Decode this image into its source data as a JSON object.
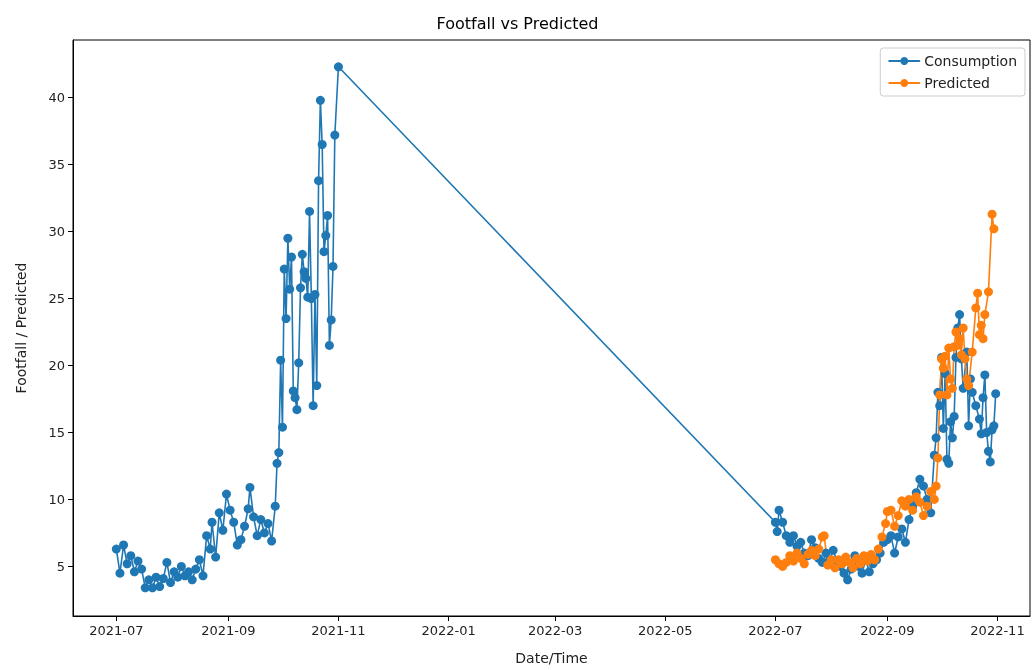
{
  "chart_data": {
    "type": "line",
    "title": "Footfall vs Predicted",
    "xlabel": "Date/Time",
    "ylabel": "Footfall / Predicted",
    "xlim": [
      "2021-06-07",
      "2022-11-19"
    ],
    "xticks": [
      {
        "value": "2021-07-01",
        "label": "2021-07"
      },
      {
        "value": "2021-09-01",
        "label": "2021-09"
      },
      {
        "value": "2021-11-01",
        "label": "2021-11"
      },
      {
        "value": "2022-01-01",
        "label": "2022-01"
      },
      {
        "value": "2022-03-01",
        "label": "2022-03"
      },
      {
        "value": "2022-05-01",
        "label": "2022-05"
      },
      {
        "value": "2022-07-01",
        "label": "2022-07"
      },
      {
        "value": "2022-09-01",
        "label": "2022-09"
      },
      {
        "value": "2022-11-01",
        "label": "2022-11"
      }
    ],
    "ylim": [
      1.3,
      44.3
    ],
    "yticks": [
      5,
      10,
      15,
      20,
      25,
      30,
      35,
      40
    ],
    "grid": false,
    "legend": "top right",
    "marker": "circle",
    "line_style": "solid",
    "series": [
      {
        "name": "Consumption",
        "color": "#1f77b4",
        "x": [
          "2021-07-01",
          "2021-07-03",
          "2021-07-05",
          "2021-07-07",
          "2021-07-09",
          "2021-07-11",
          "2021-07-13",
          "2021-07-15",
          "2021-07-17",
          "2021-07-19",
          "2021-07-21",
          "2021-07-23",
          "2021-07-25",
          "2021-07-27",
          "2021-07-29",
          "2021-07-31",
          "2021-08-02",
          "2021-08-04",
          "2021-08-06",
          "2021-08-08",
          "2021-08-10",
          "2021-08-12",
          "2021-08-14",
          "2021-08-16",
          "2021-08-18",
          "2021-08-20",
          "2021-08-22",
          "2021-08-23",
          "2021-08-25",
          "2021-08-27",
          "2021-08-29",
          "2021-08-31",
          "2021-09-02",
          "2021-09-04",
          "2021-09-06",
          "2021-09-08",
          "2021-09-10",
          "2021-09-12",
          "2021-09-13",
          "2021-09-15",
          "2021-09-17",
          "2021-09-19",
          "2021-09-21",
          "2021-09-23",
          "2021-09-25",
          "2021-09-27",
          "2021-09-28",
          "2021-09-29",
          "2021-09-30",
          "2021-10-01",
          "2021-10-02",
          "2021-10-03",
          "2021-10-04",
          "2021-10-05",
          "2021-10-06",
          "2021-10-07",
          "2021-10-08",
          "2021-10-09",
          "2021-10-10",
          "2021-10-11",
          "2021-10-12",
          "2021-10-13",
          "2021-10-14",
          "2021-10-15",
          "2021-10-16",
          "2021-10-17",
          "2021-10-18",
          "2021-10-19",
          "2021-10-20",
          "2021-10-21",
          "2021-10-22",
          "2021-10-23",
          "2021-10-24",
          "2021-10-25",
          "2021-10-26",
          "2021-10-27",
          "2021-10-28",
          "2021-10-29",
          "2021-10-30",
          "2021-11-01",
          "2022-07-01",
          "2022-07-02",
          "2022-07-03",
          "2022-07-05",
          "2022-07-07",
          "2022-07-09",
          "2022-07-11",
          "2022-07-13",
          "2022-07-15",
          "2022-07-17",
          "2022-07-19",
          "2022-07-21",
          "2022-07-23",
          "2022-07-25",
          "2022-07-27",
          "2022-07-29",
          "2022-07-31",
          "2022-08-02",
          "2022-08-04",
          "2022-08-06",
          "2022-08-08",
          "2022-08-10",
          "2022-08-12",
          "2022-08-14",
          "2022-08-16",
          "2022-08-18",
          "2022-08-20",
          "2022-08-22",
          "2022-08-24",
          "2022-08-26",
          "2022-08-28",
          "2022-08-30",
          "2022-09-01",
          "2022-09-03",
          "2022-09-05",
          "2022-09-07",
          "2022-09-09",
          "2022-09-11",
          "2022-09-13",
          "2022-09-15",
          "2022-09-17",
          "2022-09-19",
          "2022-09-21",
          "2022-09-23",
          "2022-09-25",
          "2022-09-27",
          "2022-09-28",
          "2022-09-29",
          "2022-09-30",
          "2022-10-01",
          "2022-10-02",
          "2022-10-03",
          "2022-10-04",
          "2022-10-05",
          "2022-10-06",
          "2022-10-07",
          "2022-10-08",
          "2022-10-09",
          "2022-10-10",
          "2022-10-11",
          "2022-10-12",
          "2022-10-13",
          "2022-10-15",
          "2022-10-16",
          "2022-10-17",
          "2022-10-18",
          "2022-10-20",
          "2022-10-22",
          "2022-10-23",
          "2022-10-24",
          "2022-10-25",
          "2022-10-26",
          "2022-10-27",
          "2022-10-28",
          "2022-10-29",
          "2022-10-30",
          "2022-10-31"
        ],
        "values": [
          6.3,
          4.5,
          6.6,
          5.2,
          5.8,
          4.6,
          5.4,
          4.8,
          3.4,
          4.0,
          3.4,
          4.2,
          3.5,
          4.1,
          5.3,
          3.8,
          4.6,
          4.2,
          5.0,
          4.3,
          4.6,
          4.0,
          4.8,
          5.5,
          4.3,
          7.3,
          6.3,
          8.3,
          5.7,
          9.0,
          7.7,
          10.4,
          9.2,
          8.3,
          6.6,
          7.0,
          8.0,
          9.3,
          10.9,
          8.7,
          7.3,
          8.5,
          7.5,
          8.2,
          6.9,
          9.5,
          12.7,
          13.5,
          20.4,
          15.4,
          27.2,
          23.5,
          29.5,
          25.7,
          28.1,
          18.1,
          17.6,
          16.7,
          20.2,
          25.8,
          28.3,
          27.0,
          26.5,
          25.1,
          31.5,
          25.0,
          17.0,
          25.3,
          18.5,
          33.8,
          39.8,
          36.5,
          28.5,
          29.7,
          31.2,
          21.5,
          23.4,
          27.4,
          37.2,
          42.3,
          8.3,
          7.6,
          9.2,
          8.3,
          7.3,
          6.8,
          7.3,
          6.5,
          6.8,
          6.0,
          5.8,
          7.0,
          6.4,
          5.6,
          5.3,
          6.0,
          5.5,
          6.2,
          5.4,
          5.0,
          4.5,
          4.0,
          4.8,
          5.8,
          5.0,
          4.5,
          5.5,
          4.6,
          5.2,
          5.5,
          6.0,
          6.8,
          7.0,
          7.3,
          6.0,
          7.2,
          7.8,
          6.8,
          8.5,
          9.5,
          10.5,
          11.5,
          11.0,
          10.0,
          9.0,
          13.3,
          14.6,
          18.0,
          17.0,
          20.6,
          15.3,
          19.4,
          13.0,
          12.7,
          15.8,
          14.6,
          16.2,
          20.6,
          22.8,
          23.8,
          20.5,
          18.3,
          21.0,
          15.5,
          19.0,
          18.0,
          17.0,
          16.0,
          14.9,
          17.6,
          19.3,
          15.0,
          13.6,
          12.8,
          15.2,
          15.5,
          17.9
        ]
      },
      {
        "name": "Predicted",
        "color": "#ff7f0e",
        "x": [
          "2022-07-01",
          "2022-07-03",
          "2022-07-05",
          "2022-07-07",
          "2022-07-09",
          "2022-07-11",
          "2022-07-13",
          "2022-07-15",
          "2022-07-17",
          "2022-07-19",
          "2022-07-21",
          "2022-07-23",
          "2022-07-25",
          "2022-07-27",
          "2022-07-28",
          "2022-07-30",
          "2022-08-01",
          "2022-08-03",
          "2022-08-05",
          "2022-08-07",
          "2022-08-09",
          "2022-08-11",
          "2022-08-13",
          "2022-08-15",
          "2022-08-17",
          "2022-08-19",
          "2022-08-21",
          "2022-08-23",
          "2022-08-25",
          "2022-08-27",
          "2022-08-29",
          "2022-08-31",
          "2022-09-01",
          "2022-09-03",
          "2022-09-05",
          "2022-09-07",
          "2022-09-09",
          "2022-09-11",
          "2022-09-13",
          "2022-09-15",
          "2022-09-17",
          "2022-09-19",
          "2022-09-21",
          "2022-09-23",
          "2022-09-25",
          "2022-09-27",
          "2022-09-28",
          "2022-09-29",
          "2022-09-30",
          "2022-10-01",
          "2022-10-02",
          "2022-10-03",
          "2022-10-04",
          "2022-10-05",
          "2022-10-06",
          "2022-10-07",
          "2022-10-08",
          "2022-10-09",
          "2022-10-10",
          "2022-10-11",
          "2022-10-12",
          "2022-10-13",
          "2022-10-14",
          "2022-10-15",
          "2022-10-16",
          "2022-10-18",
          "2022-10-20",
          "2022-10-21",
          "2022-10-22",
          "2022-10-23",
          "2022-10-24",
          "2022-10-25",
          "2022-10-27",
          "2022-10-29",
          "2022-10-30"
        ],
        "values": [
          5.5,
          5.2,
          5.0,
          5.3,
          5.8,
          5.4,
          6.0,
          5.6,
          5.2,
          5.9,
          6.2,
          5.8,
          6.3,
          7.2,
          7.3,
          5.1,
          5.5,
          4.9,
          5.5,
          5.2,
          5.7,
          5.3,
          4.9,
          5.6,
          5.2,
          5.8,
          5.4,
          5.9,
          5.5,
          6.3,
          7.2,
          8.2,
          9.1,
          9.2,
          8.0,
          8.8,
          9.9,
          9.5,
          10.0,
          9.2,
          10.2,
          9.8,
          8.8,
          9.5,
          10.6,
          10.0,
          11.0,
          13.1,
          17.8,
          20.5,
          19.8,
          20.7,
          17.8,
          21.3,
          19.0,
          18.3,
          21.4,
          22.5,
          21.5,
          22.0,
          20.8,
          22.8,
          20.5,
          19.0,
          18.5,
          21.0,
          24.3,
          25.4,
          22.3,
          23.0,
          22.0,
          23.8,
          25.5,
          31.3,
          30.2
        ]
      }
    ]
  }
}
